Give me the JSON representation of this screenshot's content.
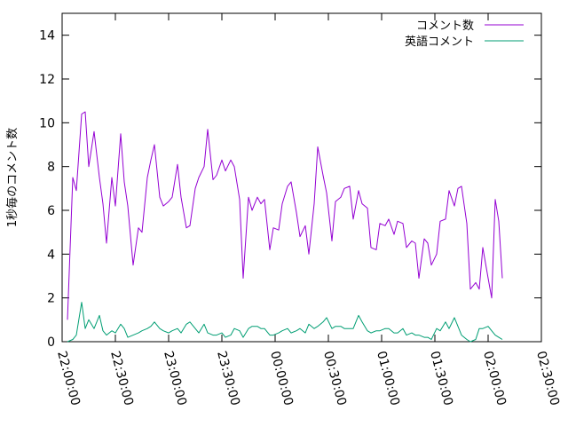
{
  "chart_data": {
    "type": "line",
    "title": "",
    "ylabel": "1秒毎のコメント数",
    "xlabel": "",
    "ylim": [
      0,
      15
    ],
    "yticks": [
      0,
      2,
      4,
      6,
      8,
      10,
      12,
      14
    ],
    "x_ticks": [
      "22:00:00",
      "22:30:00",
      "23:00:00",
      "23:30:00",
      "00:00:00",
      "00:30:00",
      "01:00:00",
      "01:30:00",
      "02:00:00",
      "02:30:00"
    ],
    "x_unit": "minutes after 22:00:00",
    "xlim": [
      0,
      270
    ],
    "legend_position": "top-right",
    "grid": false,
    "series": [
      {
        "name": "コメント数",
        "color": "#9400d3",
        "points": [
          [
            3,
            1
          ],
          [
            6,
            7.5
          ],
          [
            8,
            6.9
          ],
          [
            11,
            10.4
          ],
          [
            13,
            10.5
          ],
          [
            15,
            8
          ],
          [
            18,
            9.6
          ],
          [
            21,
            7.5
          ],
          [
            23,
            6.3
          ],
          [
            25,
            4.5
          ],
          [
            28,
            7.5
          ],
          [
            30,
            6.2
          ],
          [
            33,
            9.5
          ],
          [
            35,
            7.3
          ],
          [
            37,
            6.2
          ],
          [
            40,
            3.5
          ],
          [
            43,
            5.2
          ],
          [
            45,
            5
          ],
          [
            48,
            7.5
          ],
          [
            50,
            8.3
          ],
          [
            52,
            9
          ],
          [
            55,
            6.6
          ],
          [
            57,
            6.2
          ],
          [
            60,
            6.4
          ],
          [
            62,
            6.6
          ],
          [
            65,
            8.1
          ],
          [
            67,
            6.6
          ],
          [
            70,
            5.2
          ],
          [
            72,
            5.3
          ],
          [
            75,
            7
          ],
          [
            77,
            7.5
          ],
          [
            80,
            8
          ],
          [
            82,
            9.7
          ],
          [
            85,
            7.4
          ],
          [
            87,
            7.6
          ],
          [
            90,
            8.3
          ],
          [
            92,
            7.8
          ],
          [
            95,
            8.3
          ],
          [
            97,
            8
          ],
          [
            100,
            6.5
          ],
          [
            102,
            2.9
          ],
          [
            105,
            6.6
          ],
          [
            107,
            6
          ],
          [
            110,
            6.6
          ],
          [
            112,
            6.3
          ],
          [
            114,
            6.5
          ],
          [
            117,
            4.2
          ],
          [
            119,
            5.2
          ],
          [
            122,
            5.1
          ],
          [
            124,
            6.3
          ],
          [
            127,
            7.1
          ],
          [
            129,
            7.3
          ],
          [
            132,
            5.9
          ],
          [
            134,
            4.8
          ],
          [
            137,
            5.3
          ],
          [
            139,
            4
          ],
          [
            142,
            6.3
          ],
          [
            144,
            8.9
          ],
          [
            147,
            7.6
          ],
          [
            149,
            6.8
          ],
          [
            152,
            4.6
          ],
          [
            154,
            6.4
          ],
          [
            157,
            6.6
          ],
          [
            159,
            7
          ],
          [
            162,
            7.1
          ],
          [
            164,
            5.6
          ],
          [
            167,
            6.9
          ],
          [
            169,
            6.3
          ],
          [
            172,
            6.1
          ],
          [
            174,
            4.3
          ],
          [
            177,
            4.2
          ],
          [
            179,
            5.4
          ],
          [
            182,
            5.3
          ],
          [
            184,
            5.6
          ],
          [
            187,
            4.9
          ],
          [
            189,
            5.5
          ],
          [
            192,
            5.4
          ],
          [
            194,
            4.3
          ],
          [
            197,
            4.6
          ],
          [
            199,
            4.5
          ],
          [
            201,
            2.9
          ],
          [
            204,
            4.7
          ],
          [
            206,
            4.5
          ],
          [
            208,
            3.5
          ],
          [
            211,
            4
          ],
          [
            213,
            5.5
          ],
          [
            216,
            5.6
          ],
          [
            218,
            6.9
          ],
          [
            221,
            6.2
          ],
          [
            223,
            7
          ],
          [
            225,
            7.1
          ],
          [
            228,
            5.4
          ],
          [
            230,
            2.4
          ],
          [
            233,
            2.7
          ],
          [
            235,
            2.4
          ],
          [
            237,
            4.3
          ],
          [
            240,
            2.9
          ],
          [
            242,
            2
          ],
          [
            244,
            6.5
          ],
          [
            246,
            5.5
          ],
          [
            248,
            2.9
          ]
        ]
      },
      {
        "name": "英語コメント",
        "color": "#009e73",
        "points": [
          [
            3,
            0
          ],
          [
            6,
            0.1
          ],
          [
            8,
            0.3
          ],
          [
            11,
            1.8
          ],
          [
            13,
            0.6
          ],
          [
            15,
            1
          ],
          [
            18,
            0.6
          ],
          [
            21,
            1.2
          ],
          [
            23,
            0.5
          ],
          [
            25,
            0.3
          ],
          [
            28,
            0.5
          ],
          [
            30,
            0.4
          ],
          [
            33,
            0.8
          ],
          [
            35,
            0.6
          ],
          [
            37,
            0.2
          ],
          [
            40,
            0.3
          ],
          [
            43,
            0.4
          ],
          [
            45,
            0.5
          ],
          [
            48,
            0.6
          ],
          [
            50,
            0.7
          ],
          [
            52,
            0.9
          ],
          [
            55,
            0.6
          ],
          [
            57,
            0.5
          ],
          [
            60,
            0.4
          ],
          [
            62,
            0.5
          ],
          [
            65,
            0.6
          ],
          [
            67,
            0.4
          ],
          [
            70,
            0.8
          ],
          [
            72,
            0.9
          ],
          [
            75,
            0.6
          ],
          [
            77,
            0.4
          ],
          [
            80,
            0.8
          ],
          [
            82,
            0.4
          ],
          [
            85,
            0.3
          ],
          [
            87,
            0.3
          ],
          [
            90,
            0.4
          ],
          [
            92,
            0.2
          ],
          [
            95,
            0.3
          ],
          [
            97,
            0.6
          ],
          [
            100,
            0.5
          ],
          [
            102,
            0.2
          ],
          [
            105,
            0.6
          ],
          [
            107,
            0.7
          ],
          [
            110,
            0.7
          ],
          [
            112,
            0.6
          ],
          [
            114,
            0.6
          ],
          [
            117,
            0.3
          ],
          [
            119,
            0.3
          ],
          [
            122,
            0.4
          ],
          [
            124,
            0.5
          ],
          [
            127,
            0.6
          ],
          [
            129,
            0.4
          ],
          [
            132,
            0.5
          ],
          [
            134,
            0.6
          ],
          [
            137,
            0.4
          ],
          [
            139,
            0.8
          ],
          [
            142,
            0.6
          ],
          [
            144,
            0.7
          ],
          [
            147,
            0.9
          ],
          [
            149,
            1.1
          ],
          [
            152,
            0.6
          ],
          [
            154,
            0.7
          ],
          [
            157,
            0.7
          ],
          [
            159,
            0.6
          ],
          [
            162,
            0.6
          ],
          [
            164,
            0.6
          ],
          [
            167,
            1.2
          ],
          [
            169,
            0.9
          ],
          [
            172,
            0.5
          ],
          [
            174,
            0.4
          ],
          [
            177,
            0.5
          ],
          [
            179,
            0.5
          ],
          [
            182,
            0.6
          ],
          [
            184,
            0.6
          ],
          [
            187,
            0.4
          ],
          [
            189,
            0.4
          ],
          [
            192,
            0.6
          ],
          [
            194,
            0.3
          ],
          [
            197,
            0.4
          ],
          [
            199,
            0.3
          ],
          [
            201,
            0.3
          ],
          [
            204,
            0.2
          ],
          [
            206,
            0.2
          ],
          [
            208,
            0.1
          ],
          [
            211,
            0.6
          ],
          [
            213,
            0.5
          ],
          [
            216,
            0.9
          ],
          [
            218,
            0.6
          ],
          [
            221,
            1.1
          ],
          [
            223,
            0.7
          ],
          [
            225,
            0.3
          ],
          [
            228,
            0.1
          ],
          [
            230,
            0
          ],
          [
            233,
            0.1
          ],
          [
            235,
            0.6
          ],
          [
            237,
            0.6
          ],
          [
            240,
            0.7
          ],
          [
            242,
            0.5
          ],
          [
            244,
            0.3
          ],
          [
            246,
            0.2
          ],
          [
            248,
            0.1
          ]
        ]
      }
    ]
  }
}
